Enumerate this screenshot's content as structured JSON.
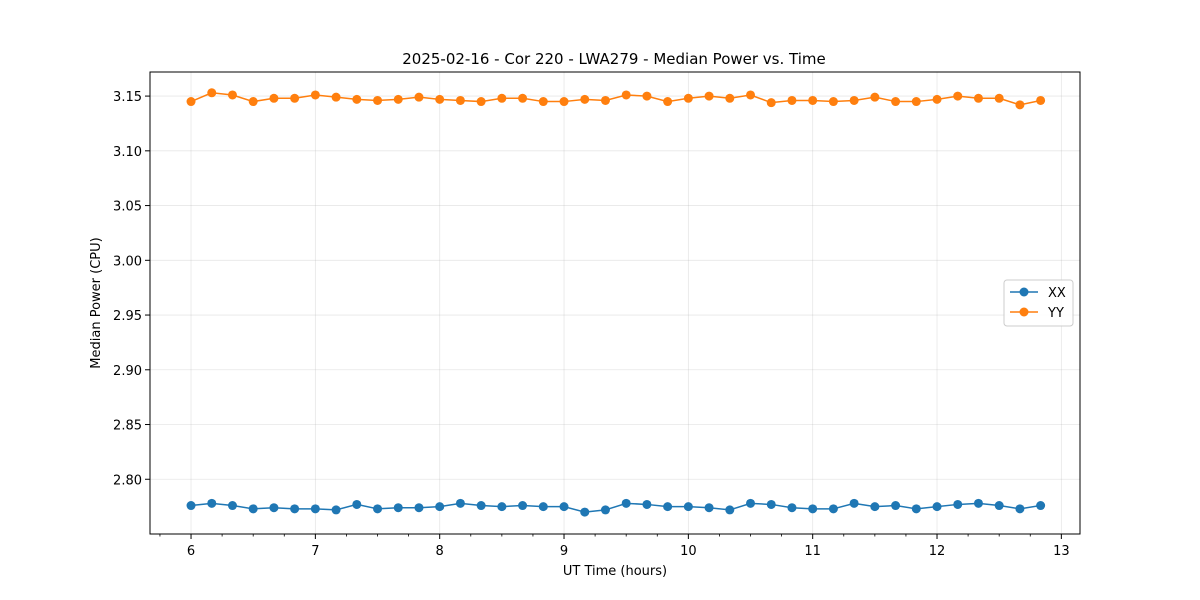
{
  "chart_data": {
    "type": "line",
    "title": "2025-02-16 - Cor 220 - LWA279 - Median Power vs. Time",
    "xlabel": "UT Time (hours)",
    "ylabel": "Median Power (CPU)",
    "xlim": [
      5.67,
      13.15
    ],
    "ylim": [
      2.75,
      3.172
    ],
    "xticks": [
      6,
      7,
      8,
      9,
      10,
      11,
      12,
      13
    ],
    "xtick_labels": [
      "6",
      "7",
      "8",
      "9",
      "10",
      "11",
      "12",
      "13"
    ],
    "yticks": [
      2.8,
      2.85,
      2.9,
      2.95,
      3.0,
      3.05,
      3.1,
      3.15
    ],
    "ytick_labels": [
      "2.80",
      "2.85",
      "2.90",
      "2.95",
      "3.00",
      "3.05",
      "3.10",
      "3.15"
    ],
    "grid": true,
    "legend_position": "center-right",
    "x": [
      6.0,
      6.1667,
      6.3333,
      6.5,
      6.6667,
      6.8333,
      7.0,
      7.1667,
      7.3333,
      7.5,
      7.6667,
      7.8333,
      8.0,
      8.1667,
      8.3333,
      8.5,
      8.6667,
      8.8333,
      9.0,
      9.1667,
      9.3333,
      9.5,
      9.6667,
      9.8333,
      10.0,
      10.1667,
      10.3333,
      10.5,
      10.6667,
      10.8333,
      11.0,
      11.1667,
      11.3333,
      11.5,
      11.6667,
      11.8333,
      12.0,
      12.1667,
      12.3333,
      12.5,
      12.6667,
      12.8333
    ],
    "series": [
      {
        "name": "XX",
        "color": "#1f77b4",
        "values": [
          2.776,
          2.778,
          2.776,
          2.773,
          2.774,
          2.773,
          2.773,
          2.772,
          2.777,
          2.773,
          2.774,
          2.774,
          2.775,
          2.778,
          2.776,
          2.775,
          2.776,
          2.775,
          2.775,
          2.77,
          2.772,
          2.778,
          2.777,
          2.775,
          2.775,
          2.774,
          2.772,
          2.778,
          2.777,
          2.774,
          2.773,
          2.773,
          2.778,
          2.775,
          2.776,
          2.773,
          2.775,
          2.777,
          2.778,
          2.776,
          2.773,
          2.776
        ]
      },
      {
        "name": "YY",
        "color": "#ff7f0e",
        "values": [
          3.145,
          3.153,
          3.151,
          3.145,
          3.148,
          3.148,
          3.151,
          3.149,
          3.147,
          3.146,
          3.147,
          3.149,
          3.147,
          3.146,
          3.145,
          3.148,
          3.148,
          3.145,
          3.145,
          3.147,
          3.146,
          3.151,
          3.15,
          3.145,
          3.148,
          3.15,
          3.148,
          3.151,
          3.144,
          3.146,
          3.146,
          3.145,
          3.146,
          3.149,
          3.145,
          3.145,
          3.147,
          3.15,
          3.148,
          3.148,
          3.142,
          3.146
        ]
      }
    ]
  }
}
